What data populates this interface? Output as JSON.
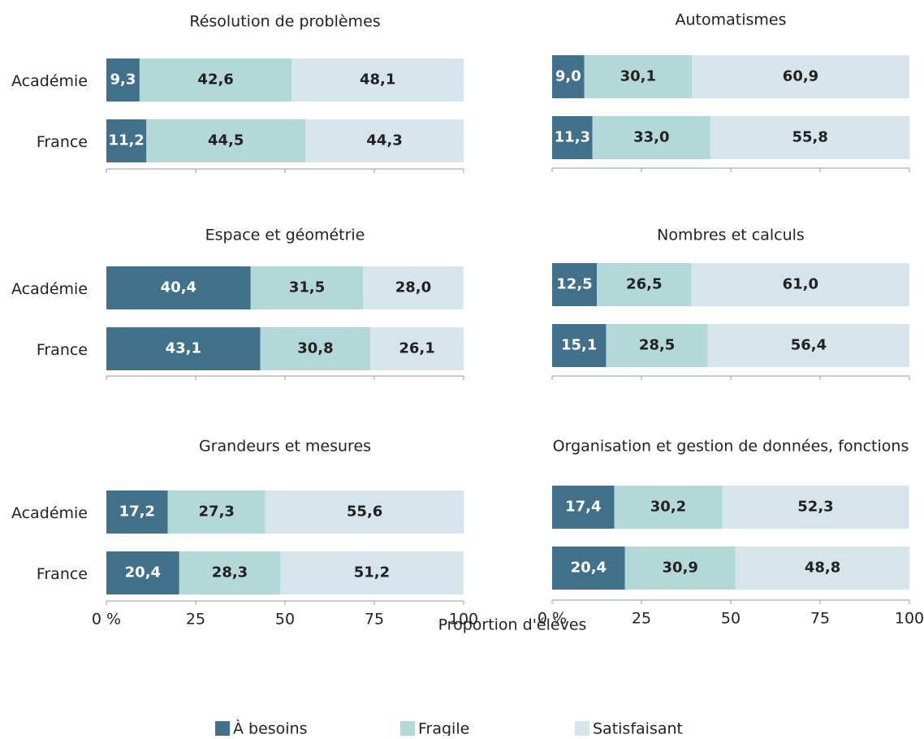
{
  "chart_data": [
    {
      "type": "stacked-bar-h",
      "title": "Résolution de problèmes",
      "categories": [
        "Académie",
        "France"
      ],
      "series": [
        {
          "values": [
            9.3,
            11.2
          ],
          "value_labels": [
            "9,3",
            "11,2"
          ]
        },
        {
          "values": [
            42.6,
            44.5
          ],
          "value_labels": [
            "42,6",
            "44,5"
          ]
        },
        {
          "values": [
            48.1,
            44.3
          ],
          "value_labels": [
            "48,1",
            "44,3"
          ]
        }
      ],
      "xlim": [
        0,
        100
      ],
      "xticks": [
        0,
        25,
        50,
        75,
        100
      ]
    },
    {
      "type": "stacked-bar-h",
      "title": "Automatismes",
      "series": [
        {
          "values": [
            9.0,
            11.3
          ],
          "value_labels": [
            "9,0",
            "11,3"
          ]
        },
        {
          "values": [
            30.1,
            33.0
          ],
          "value_labels": [
            "30,1",
            "33,0"
          ]
        },
        {
          "values": [
            60.9,
            55.8
          ],
          "value_labels": [
            "60,9",
            "55,8"
          ]
        }
      ],
      "xlim": [
        0,
        100
      ],
      "xticks": [
        0,
        25,
        50,
        75,
        100
      ]
    },
    {
      "type": "stacked-bar-h",
      "title": "Espace et géométrie",
      "categories": [
        "Académie",
        "France"
      ],
      "series": [
        {
          "values": [
            40.4,
            43.1
          ],
          "value_labels": [
            "40,4",
            "43,1"
          ]
        },
        {
          "values": [
            31.5,
            30.8
          ],
          "value_labels": [
            "31,5",
            "30,8"
          ]
        },
        {
          "values": [
            28.0,
            26.1
          ],
          "value_labels": [
            "28,0",
            "26,1"
          ]
        }
      ],
      "xlim": [
        0,
        100
      ],
      "xticks": [
        0,
        25,
        50,
        75,
        100
      ]
    },
    {
      "type": "stacked-bar-h",
      "title": "Nombres et calculs",
      "series": [
        {
          "values": [
            12.5,
            15.1
          ],
          "value_labels": [
            "12,5",
            "15,1"
          ]
        },
        {
          "values": [
            26.5,
            28.5
          ],
          "value_labels": [
            "26,5",
            "28,5"
          ]
        },
        {
          "values": [
            61.0,
            56.4
          ],
          "value_labels": [
            "61,0",
            "56,4"
          ]
        }
      ],
      "xlim": [
        0,
        100
      ],
      "xticks": [
        0,
        25,
        50,
        75,
        100
      ]
    },
    {
      "type": "stacked-bar-h",
      "title": "Grandeurs et mesures",
      "categories": [
        "Académie",
        "France"
      ],
      "series": [
        {
          "values": [
            17.2,
            20.4
          ],
          "value_labels": [
            "17,2",
            "20,4"
          ]
        },
        {
          "values": [
            27.3,
            28.3
          ],
          "value_labels": [
            "27,3",
            "28,3"
          ]
        },
        {
          "values": [
            55.6,
            51.2
          ],
          "value_labels": [
            "55,6",
            "51,2"
          ]
        }
      ],
      "xlim": [
        0,
        100
      ],
      "xticks": [
        {
          "value": 0,
          "label": "0 %"
        },
        25,
        50,
        75,
        100
      ]
    },
    {
      "type": "stacked-bar-h",
      "title": "Organisation et gestion de données, fonctions",
      "series": [
        {
          "values": [
            17.4,
            20.4
          ],
          "value_labels": [
            "17,4",
            "20,4"
          ]
        },
        {
          "values": [
            30.2,
            30.9
          ],
          "value_labels": [
            "30,2",
            "30,9"
          ]
        },
        {
          "values": [
            52.3,
            48.8
          ],
          "value_labels": [
            "52,3",
            "48,8"
          ]
        }
      ],
      "xlim": [
        0,
        100
      ],
      "xticks": [
        {
          "value": 0,
          "label": "0 %"
        },
        25,
        50,
        75,
        100
      ]
    }
  ],
  "xlabel": "Proportion d'élèves",
  "legend": [
    {
      "name": "À besoins",
      "color": "#41718a"
    },
    {
      "name": "Fragile",
      "color": "#b3d8d7"
    },
    {
      "name": "Satisfaisant",
      "color": "#d6e5ec"
    }
  ]
}
